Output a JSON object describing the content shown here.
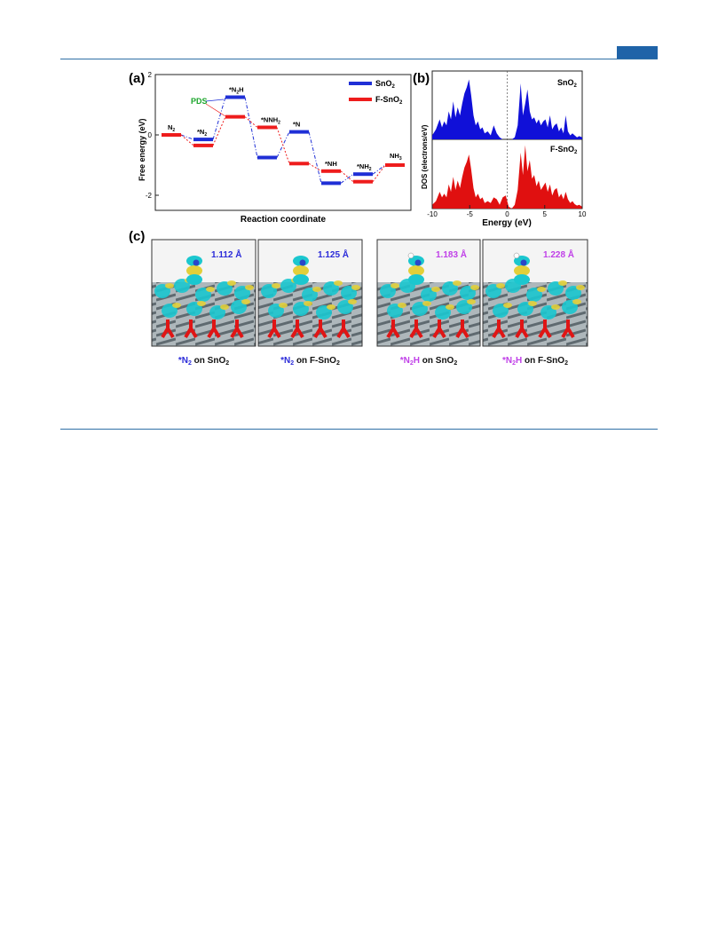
{
  "header": {
    "accent_color": "#1f63a8",
    "rule_color": "#2f6fa6"
  },
  "figure": {
    "panel_a": {
      "label": "(a)",
      "pds_label": "PDS",
      "ylabel": "Free energy (eV)",
      "xlabel": "Reaction coordinate",
      "legend": [
        {
          "name": "SnO",
          "sub": "2",
          "color": "#1f2fd6"
        },
        {
          "name": "F-SnO",
          "sub": "2",
          "color": "#ee1c1c"
        }
      ]
    },
    "panel_b": {
      "label": "(b)",
      "ylabel": "DOS (electrons/eV)",
      "xlabel": "Energy (eV)",
      "top_label": {
        "name": "SnO",
        "sub": "2"
      },
      "bottom_label": {
        "name": "F-SnO",
        "sub": "2"
      }
    },
    "panel_c": {
      "label": "(c)",
      "images": [
        {
          "distance": "1.112 Å",
          "color": "#2b2bd9",
          "cap_star": "*N",
          "cap_sub": "2",
          "cap_rest": " on SnO",
          "cap_rest_sub": "2"
        },
        {
          "distance": "1.125 Å",
          "color": "#2b2bd9",
          "cap_star": "*N",
          "cap_sub": "2",
          "cap_rest": " on F-SnO",
          "cap_rest_sub": "2"
        },
        {
          "distance": "1.183 Å",
          "color": "#c040e8",
          "cap_star": "*N",
          "cap_sub": "2",
          "cap_star2": "H",
          "cap_rest": " on SnO",
          "cap_rest_sub": "2"
        },
        {
          "distance": "1.228 Å",
          "color": "#c040e8",
          "cap_star": "*N",
          "cap_sub": "2",
          "cap_star2": "H",
          "cap_rest": " on F-SnO",
          "cap_rest_sub": "2"
        }
      ]
    }
  },
  "chart_data": [
    {
      "type": "line",
      "title": "",
      "xlabel": "Reaction coordinate",
      "ylabel": "Free energy (eV)",
      "ylim": [
        -2.5,
        2
      ],
      "yticks": [
        -2,
        0,
        2
      ],
      "steps": [
        {
          "label": "N",
          "sub": "2"
        },
        {
          "label": "*N",
          "sub": "2"
        },
        {
          "label": "*N",
          "sub": "2",
          "suffix": "H"
        },
        {
          "label": "*NNH",
          "sub": "2"
        },
        {
          "label": "*N",
          "sub": ""
        },
        {
          "label": "*NH",
          "sub": ""
        },
        {
          "label": "*NH",
          "sub": "2"
        },
        {
          "label": "NH",
          "sub": "3"
        }
      ],
      "series": [
        {
          "name": "SnO2",
          "color": "#1f2fd6",
          "values": [
            0.0,
            -0.15,
            1.25,
            -0.75,
            0.1,
            -1.6,
            -1.3,
            -1.0
          ]
        },
        {
          "name": "F-SnO2",
          "color": "#ee1c1c",
          "values": [
            0.0,
            -0.35,
            0.6,
            0.25,
            -0.95,
            -1.2,
            -1.55,
            -1.0
          ]
        }
      ],
      "legend_position": "top-right"
    },
    {
      "type": "area",
      "title": "",
      "xlabel": "Energy (eV)",
      "ylabel": "DOS (electrons/eV)",
      "xlim": [
        -10,
        10
      ],
      "xticks": [
        -10,
        -5,
        0,
        5,
        10
      ],
      "series": [
        {
          "name": "SnO2",
          "color": "#1010d8",
          "x": [
            -10,
            -9.5,
            -9,
            -8.7,
            -8.4,
            -8.1,
            -7.8,
            -7.5,
            -7.2,
            -6.9,
            -6.6,
            -6.3,
            -6,
            -5.7,
            -5.4,
            -5.1,
            -4.8,
            -4.5,
            -4.2,
            -3.9,
            -3.6,
            -3.3,
            -3,
            -2.6,
            -2.2,
            -1.8,
            -1.4,
            -1,
            -0.6,
            -0.2,
            0.2,
            0.6,
            1,
            1.4,
            1.8,
            2.1,
            2.4,
            2.7,
            3,
            3.3,
            3.6,
            3.9,
            4.2,
            4.5,
            4.8,
            5.1,
            5.4,
            5.7,
            6,
            6.3,
            6.6,
            6.9,
            7.2,
            7.5,
            7.8,
            8.1,
            8.4,
            8.7,
            9,
            9.3,
            9.6,
            10
          ],
          "y": [
            0.1,
            0.25,
            0.5,
            0.3,
            0.45,
            0.35,
            0.7,
            0.5,
            0.95,
            0.55,
            0.8,
            0.6,
            0.9,
            1.15,
            1.3,
            1.5,
            1.1,
            0.6,
            0.35,
            0.45,
            0.25,
            0.3,
            0.15,
            0.2,
            0.1,
            0.35,
            0.15,
            0.05,
            0.0,
            0.0,
            0.0,
            0.0,
            0.05,
            0.35,
            1.4,
            0.6,
            0.9,
            1.25,
            0.7,
            0.5,
            0.55,
            0.4,
            0.5,
            0.35,
            0.45,
            0.5,
            0.3,
            0.6,
            0.25,
            0.35,
            0.4,
            0.2,
            0.3,
            0.15,
            0.6,
            0.2,
            0.1,
            0.15,
            0.1,
            0.05,
            0.08,
            0.05
          ]
        },
        {
          "name": "F-SnO2",
          "color": "#e01010",
          "x": [
            -10,
            -9.5,
            -9,
            -8.7,
            -8.4,
            -8.1,
            -7.8,
            -7.5,
            -7.2,
            -6.9,
            -6.6,
            -6.3,
            -6,
            -5.7,
            -5.4,
            -5.1,
            -4.8,
            -4.5,
            -4.2,
            -3.9,
            -3.6,
            -3.3,
            -3,
            -2.6,
            -2.2,
            -1.8,
            -1.4,
            -1,
            -0.6,
            -0.2,
            0.2,
            0.6,
            1,
            1.4,
            1.8,
            2.1,
            2.4,
            2.7,
            3,
            3.3,
            3.6,
            3.9,
            4.2,
            4.5,
            4.8,
            5.1,
            5.4,
            5.7,
            6,
            6.3,
            6.6,
            6.9,
            7.2,
            7.5,
            7.8,
            8.1,
            8.4,
            8.7,
            9,
            9.3,
            9.6,
            10
          ],
          "y": [
            0.1,
            0.2,
            0.45,
            0.3,
            0.4,
            0.3,
            0.65,
            0.45,
            0.85,
            0.5,
            0.75,
            0.55,
            0.85,
            1.1,
            1.25,
            1.45,
            1.05,
            0.55,
            0.3,
            0.4,
            0.25,
            0.3,
            0.15,
            0.2,
            0.15,
            0.3,
            0.25,
            0.1,
            0.3,
            0.35,
            0.05,
            0.0,
            0.1,
            0.5,
            1.5,
            0.9,
            1.7,
            1.0,
            1.3,
            0.8,
            0.9,
            0.6,
            0.75,
            0.5,
            0.6,
            0.7,
            0.45,
            0.65,
            0.35,
            0.5,
            0.55,
            0.3,
            0.4,
            0.25,
            0.45,
            0.25,
            0.15,
            0.2,
            0.12,
            0.08,
            0.1,
            0.05
          ]
        }
      ]
    }
  ]
}
